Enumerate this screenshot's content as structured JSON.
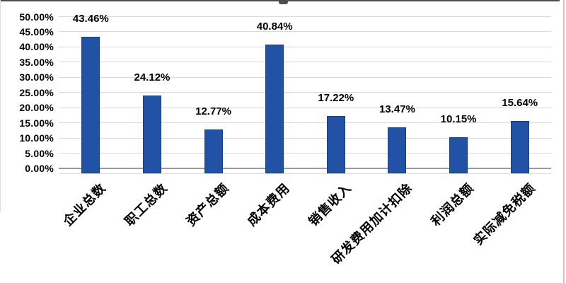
{
  "chart_data": {
    "type": "bar",
    "title": "",
    "xlabel": "",
    "ylabel": "",
    "categories": [
      "企业总数",
      "职工总数",
      "资产总额",
      "成本费用",
      "销售收入",
      "研发费用加计扣除",
      "利润总额",
      "实际减免税额"
    ],
    "values": [
      43.46,
      24.12,
      12.77,
      40.84,
      17.22,
      13.47,
      10.15,
      15.64
    ],
    "data_labels": [
      "43.46%",
      "24.12%",
      "12.77%",
      "40.84%",
      "17.22%",
      "13.47%",
      "10.15%",
      "15.64%"
    ],
    "y_ticks": [
      "50.00%",
      "45.00%",
      "40.00%",
      "35.00%",
      "30.00%",
      "25.00%",
      "20.00%",
      "15.00%",
      "10.00%",
      "5.00%",
      "0.00%"
    ],
    "y_tick_values": [
      50,
      45,
      40,
      35,
      30,
      25,
      20,
      15,
      10,
      5,
      0
    ],
    "ylim": [
      0,
      50
    ],
    "grid": true,
    "legend": "none",
    "colors": {
      "bar_fill": "#2152a5",
      "bar_border": "#193e7d",
      "gridline": "#d9d9d9",
      "axis_line": "#9a9a9a",
      "axis_shadow": "#dcdcdc",
      "label_text": "#000000",
      "crop_border": "#4d4d4d"
    }
  }
}
